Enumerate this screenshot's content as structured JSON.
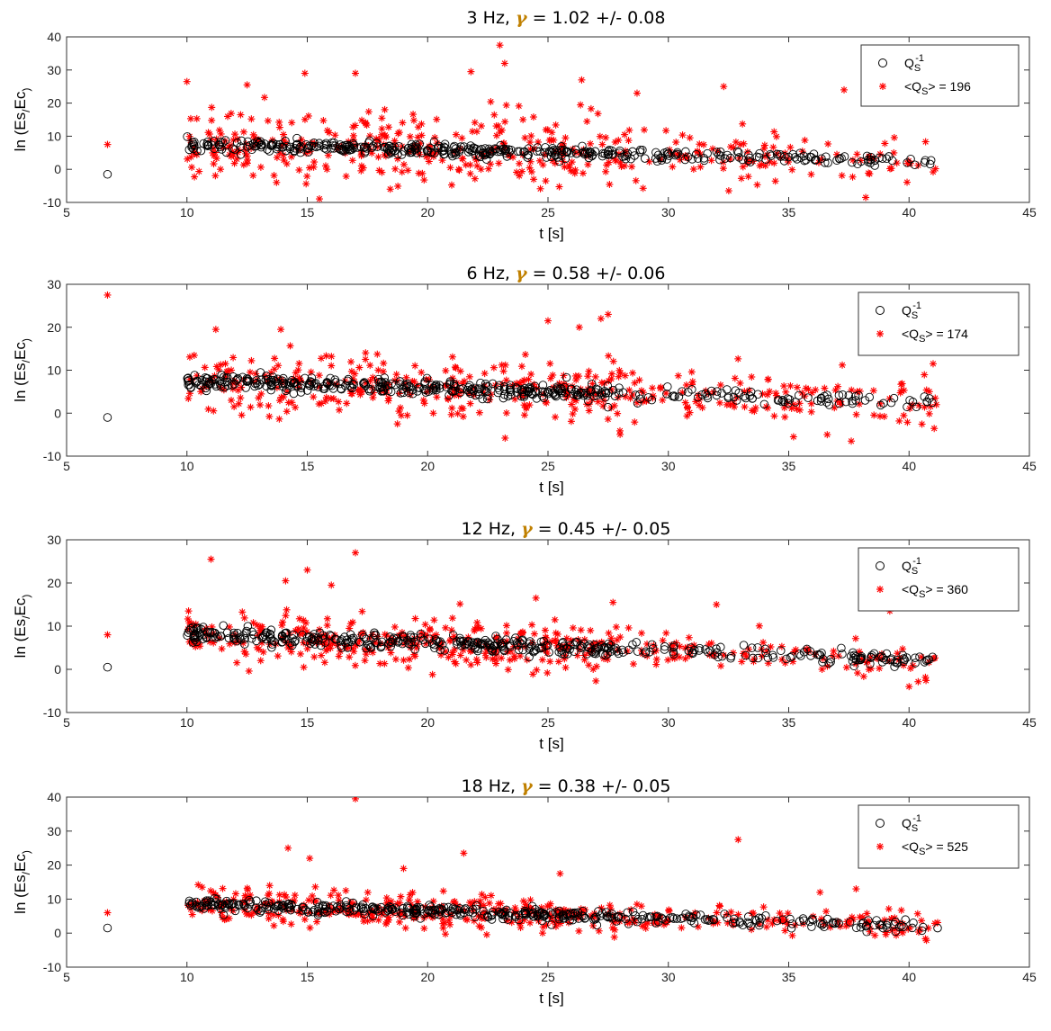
{
  "chart_data": [
    {
      "type": "scatter",
      "title": "3 Hz, γ = 1.02 +/- 0.08",
      "title_parts": {
        "pre": "3 Hz, ",
        "gamma": "γ",
        "post": " = 1.02 +/- 0.08"
      },
      "xlabel": "t [s]",
      "ylabel": "ln (Es/Ec)",
      "xlim": [
        5,
        45
      ],
      "ylim": [
        -10,
        40
      ],
      "xticks": [
        5,
        10,
        15,
        20,
        25,
        30,
        35,
        40,
        45
      ],
      "yticks": [
        -10,
        0,
        10,
        20,
        30,
        40
      ],
      "legend_position": "top-right",
      "series": [
        {
          "name": "Q_S^-1",
          "marker": "circle",
          "color": "#000000",
          "outlier": [
            6.7,
            -1.5
          ],
          "trend": [
            [
              10,
              7.5
            ],
            [
              41,
              2.5
            ]
          ],
          "spread": 1.5
        },
        {
          "name": "<Q_S> = 196",
          "marker": "asterisk",
          "color": "#ff0000",
          "outlier": [
            6.7,
            7.5
          ],
          "trend": [
            [
              10,
              7.5
            ],
            [
              41,
              2.5
            ]
          ],
          "spread": 9,
          "highlights": [
            [
              23.0,
              37.5
            ],
            [
              23.2,
              32
            ],
            [
              14.9,
              29
            ],
            [
              17.0,
              29
            ],
            [
              21.8,
              29.5
            ],
            [
              10.0,
              26.5
            ],
            [
              12.5,
              25.5
            ],
            [
              32.3,
              25
            ],
            [
              37.3,
              24
            ],
            [
              28.7,
              23
            ],
            [
              26.4,
              27
            ],
            [
              38.2,
              -8.5
            ]
          ]
        }
      ]
    },
    {
      "type": "scatter",
      "title": "6 Hz, γ = 0.58 +/- 0.06",
      "title_parts": {
        "pre": "6 Hz, ",
        "gamma": "γ",
        "post": " = 0.58 +/- 0.06"
      },
      "xlabel": "t [s]",
      "ylabel": "ln (Es/Ec)",
      "xlim": [
        5,
        45
      ],
      "ylim": [
        -10,
        30
      ],
      "xticks": [
        5,
        10,
        15,
        20,
        25,
        30,
        35,
        40,
        45
      ],
      "yticks": [
        -10,
        0,
        10,
        20,
        30
      ],
      "legend_position": "top-right",
      "series": [
        {
          "name": "Q_S^-1",
          "marker": "circle",
          "color": "#000000",
          "outlier": [
            6.7,
            -1.0
          ],
          "trend": [
            [
              10,
              7.5
            ],
            [
              41,
              2.5
            ]
          ],
          "spread": 1.5
        },
        {
          "name": "<Q_S> = 174",
          "marker": "asterisk",
          "color": "#ff0000",
          "outlier": [
            6.7,
            27.5
          ],
          "trend": [
            [
              10,
              7.5
            ],
            [
              41,
              2.5
            ]
          ],
          "spread": 6,
          "highlights": [
            [
              27.5,
              23
            ],
            [
              27.2,
              22
            ],
            [
              25.0,
              21.5
            ],
            [
              26.3,
              20
            ],
            [
              11.2,
              19.5
            ],
            [
              13.9,
              19.5
            ],
            [
              36.6,
              -5
            ],
            [
              37.6,
              -6.5
            ],
            [
              35.2,
              -5.5
            ],
            [
              41.0,
              11.5
            ]
          ]
        }
      ]
    },
    {
      "type": "scatter",
      "title": "12 Hz, γ = 0.45 +/- 0.05",
      "title_parts": {
        "pre": "12 Hz, ",
        "gamma": "γ",
        "post": " =  0.45 +/- 0.05"
      },
      "xlabel": "t [s]",
      "ylabel": "ln (Es/Ec)",
      "xlim": [
        5,
        45
      ],
      "ylim": [
        -10,
        30
      ],
      "xticks": [
        5,
        10,
        15,
        20,
        25,
        30,
        35,
        40,
        45
      ],
      "yticks": [
        -10,
        0,
        10,
        20,
        30
      ],
      "legend_position": "top-right",
      "series": [
        {
          "name": "Q_S^-1",
          "marker": "circle",
          "color": "#000000",
          "outlier": [
            6.7,
            0.5
          ],
          "trend": [
            [
              10,
              8
            ],
            [
              41,
              2
            ]
          ],
          "spread": 1.5
        },
        {
          "name": "<Q_S> = 360",
          "marker": "asterisk",
          "color": "#ff0000",
          "outlier": [
            6.7,
            8.0
          ],
          "trend": [
            [
              10,
              8
            ],
            [
              41,
              2
            ]
          ],
          "spread": 4.5,
          "highlights": [
            [
              17.0,
              27
            ],
            [
              11.0,
              25.5
            ],
            [
              15.0,
              23
            ],
            [
              14.1,
              20.5
            ],
            [
              16.0,
              19.5
            ],
            [
              24.5,
              16.5
            ],
            [
              27.7,
              15.5
            ],
            [
              32.0,
              15
            ],
            [
              39.2,
              13.5
            ],
            [
              40.0,
              -4
            ]
          ]
        }
      ]
    },
    {
      "type": "scatter",
      "title": "18 Hz, γ = 0.38 +/- 0.05",
      "title_parts": {
        "pre": "18 Hz, ",
        "gamma": "γ",
        "post": " = 0.38 +/- 0.05"
      },
      "xlabel": "t [s]",
      "ylabel": "ln (Es/Ec)",
      "xlim": [
        5,
        45
      ],
      "ylim": [
        -10,
        40
      ],
      "xticks": [
        5,
        10,
        15,
        20,
        25,
        30,
        35,
        40,
        45
      ],
      "yticks": [
        -10,
        0,
        10,
        20,
        30,
        40
      ],
      "legend_position": "top-right",
      "series": [
        {
          "name": "Q_S^-1",
          "marker": "circle",
          "color": "#000000",
          "outlier": [
            6.7,
            1.5
          ],
          "trend": [
            [
              10,
              8.5
            ],
            [
              41,
              2
            ]
          ],
          "spread": 1.5
        },
        {
          "name": "<Q_S> = 525",
          "marker": "asterisk",
          "color": "#ff0000",
          "outlier": [
            6.7,
            6.0
          ],
          "trend": [
            [
              10,
              8.5
            ],
            [
              41,
              2
            ]
          ],
          "spread": 4.5,
          "highlights": [
            [
              17.0,
              39.5
            ],
            [
              32.9,
              27.5
            ],
            [
              14.2,
              25
            ],
            [
              21.5,
              23.5
            ],
            [
              15.1,
              22
            ],
            [
              19.0,
              19
            ],
            [
              25.5,
              17.5
            ],
            [
              37.8,
              13
            ],
            [
              36.3,
              12
            ]
          ]
        }
      ]
    }
  ]
}
